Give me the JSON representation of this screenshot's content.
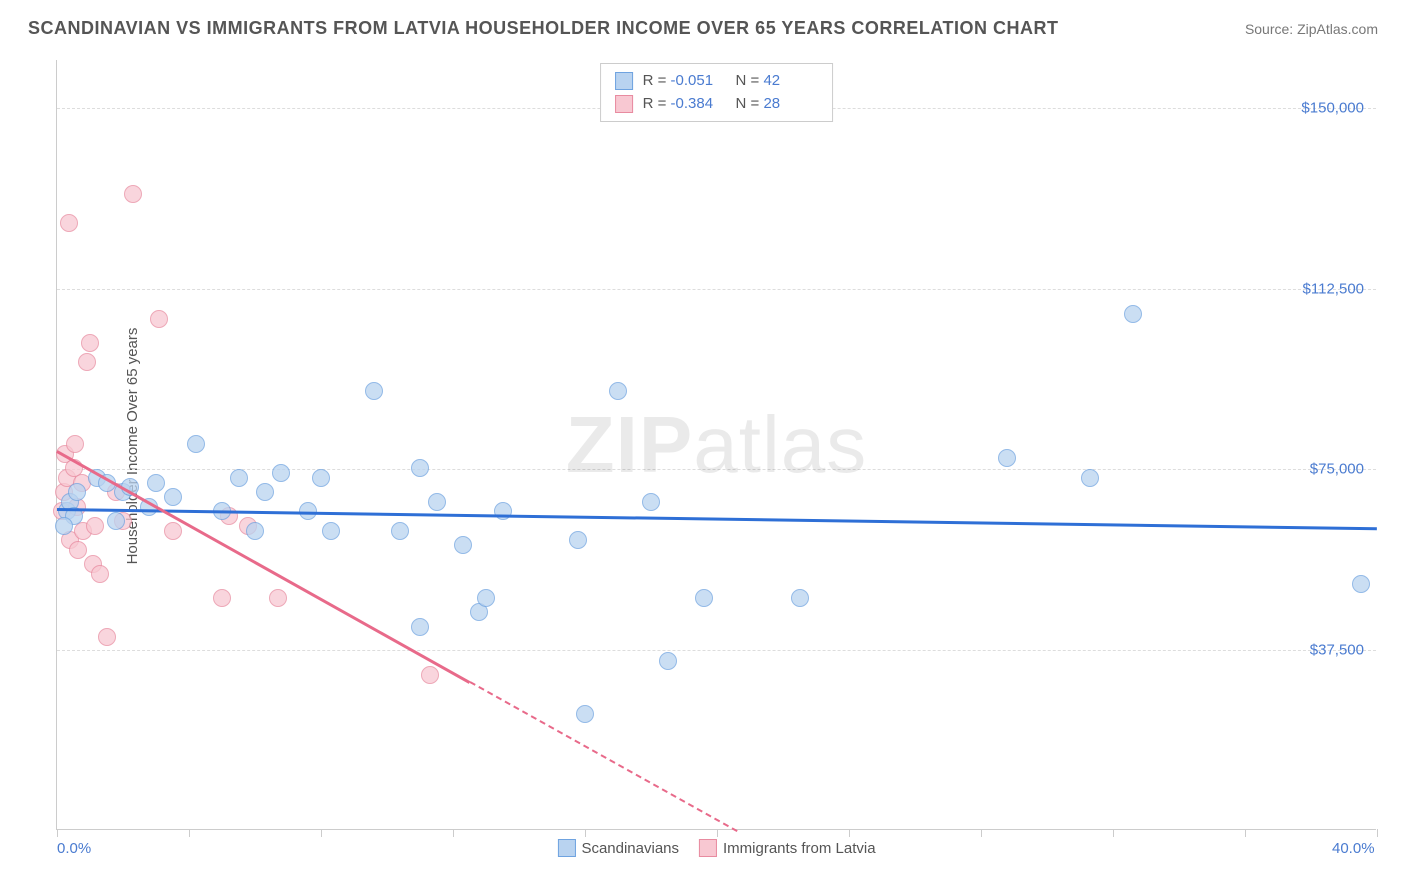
{
  "header": {
    "title": "SCANDINAVIAN VS IMMIGRANTS FROM LATVIA HOUSEHOLDER INCOME OVER 65 YEARS CORRELATION CHART",
    "source": "Source: ZipAtlas.com"
  },
  "chart": {
    "type": "scatter",
    "watermark_bold": "ZIP",
    "watermark_light": "atlas",
    "ylabel": "Householder Income Over 65 years",
    "xlim": [
      0,
      40
    ],
    "ylim": [
      0,
      160000
    ],
    "xtick_positions": [
      0,
      4,
      8,
      12,
      16,
      20,
      24,
      28,
      32,
      36,
      40
    ],
    "xtick_labels": {
      "0": "0.0%",
      "40": "40.0%"
    },
    "ytick_positions": [
      37500,
      75000,
      112500,
      150000
    ],
    "ytick_labels": [
      "$37,500",
      "$75,000",
      "$112,500",
      "$150,000"
    ],
    "colors": {
      "series1_fill": "#b9d3f0",
      "series1_stroke": "#6fa3e0",
      "series1_line": "#2e6fd6",
      "series2_fill": "#f8c8d2",
      "series2_stroke": "#e88ba0",
      "series2_line": "#e86a8a",
      "grid": "#dddddd",
      "axis": "#cccccc",
      "text": "#555555",
      "tick_text": "#4a7bd0"
    },
    "stats": {
      "r_label": "R = ",
      "n_label": "N = ",
      "series1": {
        "r": "-0.051",
        "n": "42"
      },
      "series2": {
        "r": "-0.384",
        "n": "28"
      }
    },
    "legend": {
      "series1": "Scandinavians",
      "series2": "Immigrants from Latvia"
    },
    "series1_points": [
      [
        0.3,
        66000
      ],
      [
        0.4,
        68000
      ],
      [
        0.5,
        65000
      ],
      [
        0.6,
        70000
      ],
      [
        1.2,
        73000
      ],
      [
        1.5,
        72000
      ],
      [
        1.8,
        64000
      ],
      [
        2.0,
        70000
      ],
      [
        2.2,
        71000
      ],
      [
        2.8,
        67000
      ],
      [
        3.0,
        72000
      ],
      [
        3.5,
        69000
      ],
      [
        4.2,
        80000
      ],
      [
        5.0,
        66000
      ],
      [
        5.5,
        73000
      ],
      [
        6.0,
        62000
      ],
      [
        6.3,
        70000
      ],
      [
        6.8,
        74000
      ],
      [
        7.6,
        66000
      ],
      [
        8.0,
        73000
      ],
      [
        8.3,
        62000
      ],
      [
        9.6,
        91000
      ],
      [
        10.4,
        62000
      ],
      [
        11.0,
        75000
      ],
      [
        11.5,
        68000
      ],
      [
        11.0,
        42000
      ],
      [
        12.3,
        59000
      ],
      [
        12.8,
        45000
      ],
      [
        13.0,
        48000
      ],
      [
        13.5,
        66000
      ],
      [
        15.8,
        60000
      ],
      [
        16.0,
        24000
      ],
      [
        17.0,
        91000
      ],
      [
        18.0,
        68000
      ],
      [
        18.5,
        35000
      ],
      [
        19.6,
        48000
      ],
      [
        22.5,
        48000
      ],
      [
        28.8,
        77000
      ],
      [
        31.3,
        73000
      ],
      [
        32.6,
        107000
      ],
      [
        39.5,
        51000
      ],
      [
        0.2,
        63000
      ]
    ],
    "series2_points": [
      [
        0.15,
        66000
      ],
      [
        0.2,
        70000
      ],
      [
        0.25,
        78000
      ],
      [
        0.3,
        73000
      ],
      [
        0.35,
        126000
      ],
      [
        0.4,
        60000
      ],
      [
        0.5,
        75000
      ],
      [
        0.55,
        80000
      ],
      [
        0.6,
        67000
      ],
      [
        0.65,
        58000
      ],
      [
        0.75,
        72000
      ],
      [
        0.8,
        62000
      ],
      [
        0.9,
        97000
      ],
      [
        1.0,
        101000
      ],
      [
        1.1,
        55000
      ],
      [
        1.15,
        63000
      ],
      [
        1.3,
        53000
      ],
      [
        1.5,
        40000
      ],
      [
        1.8,
        70000
      ],
      [
        2.0,
        64000
      ],
      [
        2.3,
        132000
      ],
      [
        3.1,
        106000
      ],
      [
        3.5,
        62000
      ],
      [
        5.2,
        65000
      ],
      [
        5.0,
        48000
      ],
      [
        6.7,
        48000
      ],
      [
        5.8,
        63000
      ],
      [
        11.3,
        32000
      ]
    ],
    "trend_lines": {
      "series1": {
        "x1": 0,
        "y1": 67000,
        "x2": 40,
        "y2": 63000
      },
      "series2_solid": {
        "x1": 0,
        "y1": 79000,
        "x2": 12.5,
        "y2": 31000
      },
      "series2_dashed": {
        "x1": 12.5,
        "y1": 31000,
        "x2": 20.6,
        "y2": 0
      }
    }
  }
}
